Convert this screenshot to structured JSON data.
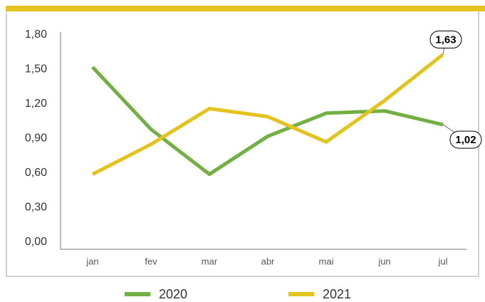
{
  "chart_data": {
    "type": "line",
    "categories": [
      "jan",
      "fev",
      "mar",
      "abr",
      "mai",
      "jun",
      "jul"
    ],
    "series": [
      {
        "name": "2020",
        "color": "#72b043",
        "values": [
          1.52,
          0.98,
          0.59,
          0.92,
          1.12,
          1.14,
          1.02
        ],
        "value_labels": [
          null,
          null,
          null,
          null,
          null,
          null,
          "1,02"
        ]
      },
      {
        "name": "2021",
        "color": "#e3c31c",
        "values": [
          0.59,
          0.85,
          1.16,
          1.09,
          0.87,
          1.23,
          1.63
        ],
        "value_labels": [
          null,
          null,
          null,
          null,
          null,
          null,
          "1,63"
        ]
      }
    ],
    "ylim": [
      0,
      1.8
    ],
    "yticks": [
      {
        "value": 0,
        "label": "0,00"
      },
      {
        "value": 0.3,
        "label": "0,30"
      },
      {
        "value": 0.6,
        "label": "0,60"
      },
      {
        "value": 0.9,
        "label": "0,90"
      },
      {
        "value": 1.2,
        "label": "1,20"
      },
      {
        "value": 1.5,
        "label": "1,50"
      },
      {
        "value": 1.8,
        "label": "1,80"
      }
    ],
    "grid": false,
    "legend": "bottom"
  }
}
